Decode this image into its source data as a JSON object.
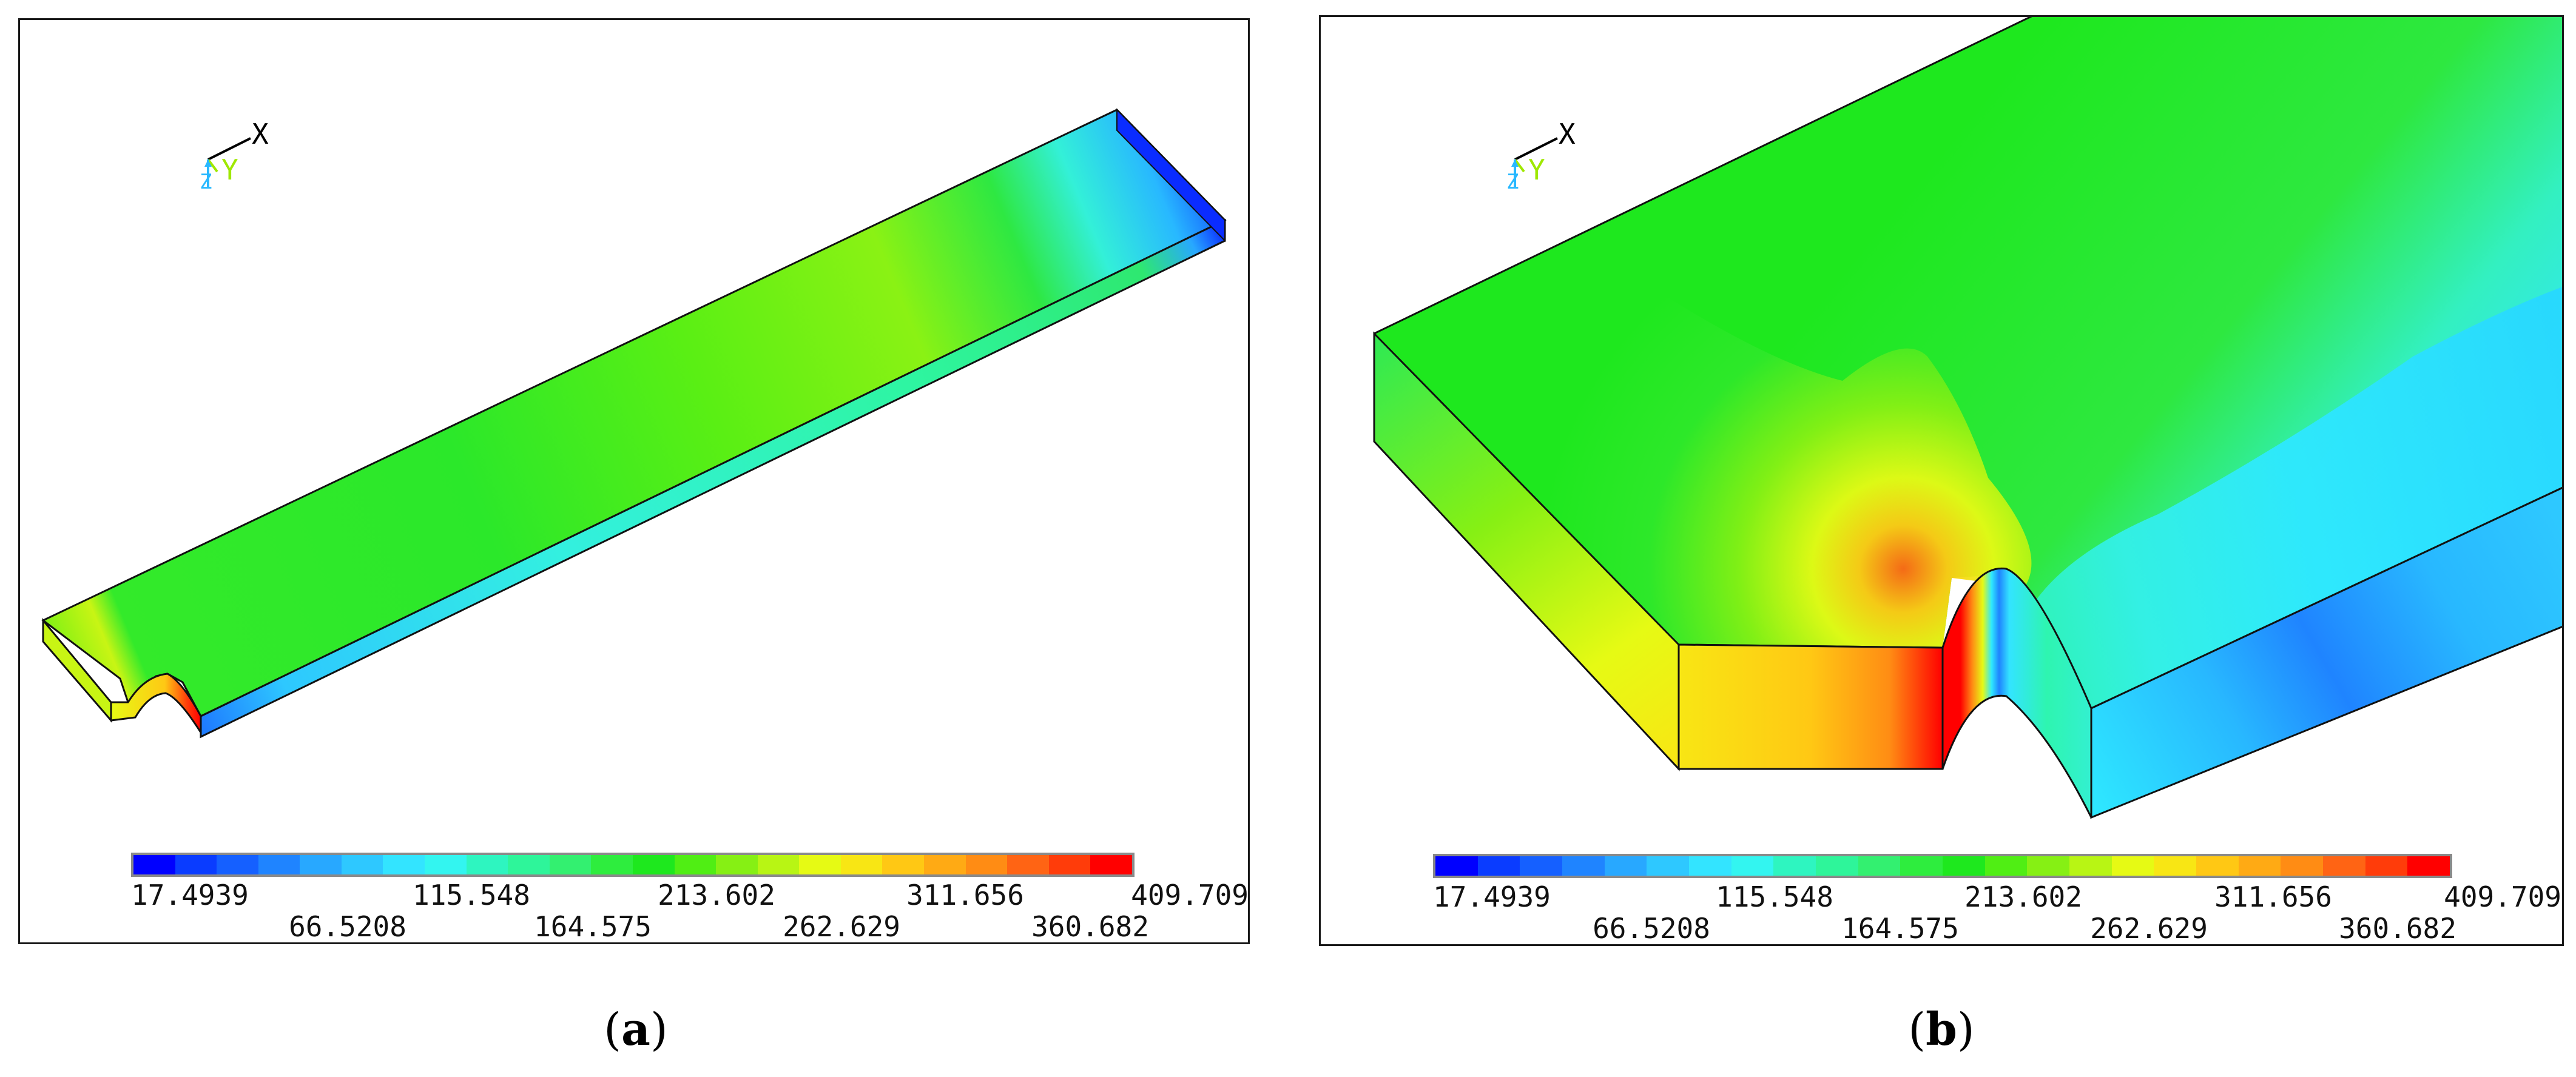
{
  "colormap": [
    "#0000ff",
    "#0a3cff",
    "#1560ff",
    "#1f84ff",
    "#28a8ff",
    "#2ec8ff",
    "#33e4ff",
    "#33f5f0",
    "#2ef5c0",
    "#2ef59a",
    "#33f070",
    "#2eed3e",
    "#1ee81e",
    "#50ee14",
    "#86f014",
    "#b8f514",
    "#e6fa14",
    "#f8e614",
    "#ffc814",
    "#ffaa14",
    "#ff8c14",
    "#ff6414",
    "#ff3c0a",
    "#ff0000"
  ],
  "panels": [
    {
      "id": "a",
      "caption": "a",
      "triad": {
        "x": "X",
        "y": "Y",
        "z": "Z"
      },
      "scale_top": [
        "17.4939",
        "115.548",
        "213.602",
        "311.656",
        "409.709"
      ],
      "scale_bottom": [
        "66.5208",
        "164.575",
        "262.629",
        "360.682"
      ]
    },
    {
      "id": "b",
      "caption": "b",
      "triad": {
        "x": "X",
        "y": "Y",
        "z": "Z"
      },
      "scale_top": [
        "17.4939",
        "115.548",
        "213.602",
        "311.656",
        "409.709"
      ],
      "scale_bottom": [
        "66.5208",
        "164.575",
        "262.629",
        "360.682"
      ]
    }
  ]
}
